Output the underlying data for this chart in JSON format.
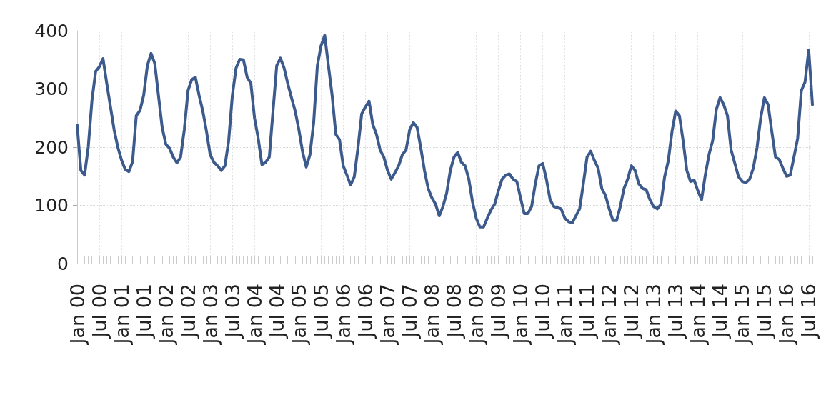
{
  "chart_data": {
    "type": "line",
    "categories": [
      "Jan 00",
      null,
      null,
      null,
      null,
      null,
      "Jul 00",
      null,
      null,
      null,
      null,
      null,
      "Jan 01",
      null,
      null,
      null,
      null,
      null,
      "Jul 01",
      null,
      null,
      null,
      null,
      null,
      "Jan 02",
      null,
      null,
      null,
      null,
      null,
      "Jul 02",
      null,
      null,
      null,
      null,
      null,
      "Jan 03",
      null,
      null,
      null,
      null,
      null,
      "Jul 03",
      null,
      null,
      null,
      null,
      null,
      "Jan 04",
      null,
      null,
      null,
      null,
      null,
      "Jul 04",
      null,
      null,
      null,
      null,
      null,
      "Jan 05",
      null,
      null,
      null,
      null,
      null,
      "Jul 05",
      null,
      null,
      null,
      null,
      null,
      "Jan 06",
      null,
      null,
      null,
      null,
      null,
      "Jul 06",
      null,
      null,
      null,
      null,
      null,
      "Jan 07",
      null,
      null,
      null,
      null,
      null,
      "Jul 07",
      null,
      null,
      null,
      null,
      null,
      "Jan 08",
      null,
      null,
      null,
      null,
      null,
      "Jul 08",
      null,
      null,
      null,
      null,
      null,
      "Jan 09",
      null,
      null,
      null,
      null,
      null,
      "Jul 09",
      null,
      null,
      null,
      null,
      null,
      "Jan 10",
      null,
      null,
      null,
      null,
      null,
      "Jul 10",
      null,
      null,
      null,
      null,
      null,
      "Jan 11",
      null,
      null,
      null,
      null,
      null,
      "Jul 11",
      null,
      null,
      null,
      null,
      null,
      "Jan 12",
      null,
      null,
      null,
      null,
      null,
      "Jul 12",
      null,
      null,
      null,
      null,
      null,
      "Jan 13",
      null,
      null,
      null,
      null,
      null,
      "Jul 13",
      null,
      null,
      null,
      null,
      null,
      "Jan 14",
      null,
      null,
      null,
      null,
      null,
      "Jul 14",
      null,
      null,
      null,
      null,
      null,
      "Jan 15",
      null,
      null,
      null,
      null,
      null,
      "Jul 15",
      null,
      null,
      null,
      null,
      null,
      "Jan 16",
      null,
      null,
      null,
      null,
      null,
      "Jul 16",
      null
    ],
    "series": [
      {
        "color": "#3d5a8c",
        "values": [
          238,
          160,
          152,
          200,
          280,
          330,
          338,
          352,
          310,
          270,
          230,
          200,
          178,
          162,
          158,
          175,
          254,
          263,
          289,
          340,
          361,
          344,
          289,
          234,
          205,
          198,
          183,
          173,
          183,
          230,
          297,
          316,
          320,
          289,
          262,
          227,
          187,
          174,
          168,
          160,
          168,
          211,
          289,
          336,
          351,
          350,
          320,
          310,
          250,
          215,
          170,
          174,
          183,
          262,
          340,
          353,
          336,
          309,
          285,
          262,
          230,
          192,
          166,
          187,
          242,
          340,
          374,
          392,
          340,
          289,
          222,
          213,
          168,
          152,
          135,
          149,
          199,
          257,
          269,
          279,
          239,
          222,
          195,
          183,
          160,
          145,
          156,
          168,
          187,
          195,
          230,
          242,
          234,
          199,
          160,
          129,
          113,
          102,
          82,
          98,
          121,
          160,
          183,
          191,
          174,
          168,
          145,
          106,
          78,
          63,
          63,
          78,
          92,
          102,
          125,
          145,
          152,
          154,
          145,
          141,
          113,
          86,
          86,
          98,
          137,
          168,
          172,
          145,
          110,
          98,
          96,
          94,
          78,
          72,
          70,
          82,
          94,
          137,
          183,
          193,
          177,
          164,
          129,
          117,
          94,
          74,
          74,
          98,
          129,
          145,
          168,
          160,
          137,
          129,
          127,
          110,
          98,
          94,
          102,
          149,
          177,
          227,
          262,
          254,
          211,
          160,
          141,
          143,
          125,
          110,
          152,
          187,
          211,
          265,
          285,
          273,
          254,
          195,
          172,
          149,
          141,
          139,
          145,
          164,
          199,
          250,
          285,
          273,
          227,
          183,
          179,
          164,
          150,
          152,
          183,
          215,
          297,
          312,
          367,
          273
        ]
      }
    ],
    "ylim": [
      0,
      400
    ],
    "yticks": [
      0,
      100,
      200,
      300,
      400
    ],
    "grid": true,
    "marker": "none",
    "line_style": "solid"
  }
}
